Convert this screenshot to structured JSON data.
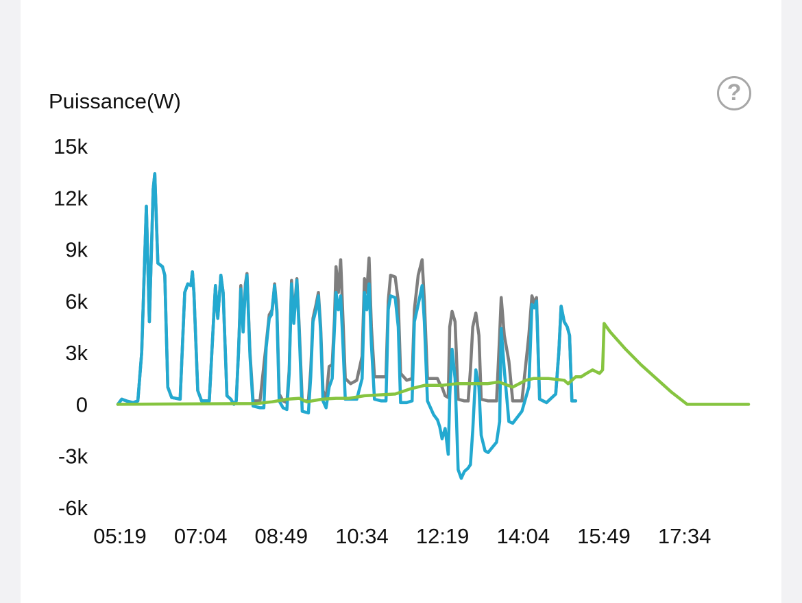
{
  "help_icon": "question-mark-circle-icon",
  "colors": {
    "blue": "#23a9d0",
    "gray": "#7e7e7e",
    "green": "#86c440",
    "text": "#111111"
  },
  "chart_data": {
    "type": "line",
    "title": "",
    "ylabel": "Puissance(W)",
    "xlabel": "",
    "ylim": [
      -6000,
      15000
    ],
    "yticks": [
      {
        "value": 15000,
        "label": "15k"
      },
      {
        "value": 12000,
        "label": "12k"
      },
      {
        "value": 9000,
        "label": "9k"
      },
      {
        "value": 6000,
        "label": "6k"
      },
      {
        "value": 3000,
        "label": "3k"
      },
      {
        "value": 0,
        "label": "0"
      },
      {
        "value": -3000,
        "label": "-3k"
      },
      {
        "value": -6000,
        "label": "-6k"
      }
    ],
    "xlim": [
      319,
      1140
    ],
    "xticks": [
      {
        "value": 319,
        "label": "05:19"
      },
      {
        "value": 424,
        "label": "07:04"
      },
      {
        "value": 529,
        "label": "08:49"
      },
      {
        "value": 634,
        "label": "10:34"
      },
      {
        "value": 739,
        "label": "12:19"
      },
      {
        "value": 844,
        "label": "14:04"
      },
      {
        "value": 949,
        "label": "15:49"
      },
      {
        "value": 1054,
        "label": "17:34"
      }
    ],
    "grid": false,
    "legend": "none",
    "series": [
      {
        "color": "#7e7e7e",
        "points": [
          [
            319,
            0
          ],
          [
            324,
            300
          ],
          [
            330,
            200
          ],
          [
            339,
            100
          ],
          [
            345,
            200
          ],
          [
            350,
            3000
          ],
          [
            356,
            11500
          ],
          [
            360,
            4800
          ],
          [
            365,
            12500
          ],
          [
            367,
            13400
          ],
          [
            371,
            8200
          ],
          [
            377,
            8000
          ],
          [
            380,
            7500
          ],
          [
            384,
            1000
          ],
          [
            389,
            400
          ],
          [
            400,
            300
          ],
          [
            406,
            6500
          ],
          [
            410,
            7000
          ],
          [
            414,
            6900
          ],
          [
            416,
            7700
          ],
          [
            418,
            6500
          ],
          [
            423,
            800
          ],
          [
            428,
            200
          ],
          [
            438,
            200
          ],
          [
            443,
            4500
          ],
          [
            446,
            6900
          ],
          [
            449,
            5000
          ],
          [
            453,
            7500
          ],
          [
            456,
            6500
          ],
          [
            461,
            500
          ],
          [
            466,
            300
          ],
          [
            470,
            0
          ],
          [
            473,
            200
          ],
          [
            476,
            3000
          ],
          [
            479,
            6900
          ],
          [
            482,
            4400
          ],
          [
            485,
            7000
          ],
          [
            487,
            7600
          ],
          [
            491,
            3000
          ],
          [
            495,
            200
          ],
          [
            504,
            200
          ],
          [
            512,
            3500
          ],
          [
            516,
            5200
          ],
          [
            520,
            5500
          ],
          [
            523,
            7000
          ],
          [
            526,
            5500
          ],
          [
            529,
            600
          ],
          [
            534,
            200
          ],
          [
            539,
            100
          ],
          [
            542,
            2000
          ],
          [
            545,
            7200
          ],
          [
            548,
            5000
          ],
          [
            552,
            7300
          ],
          [
            555,
            4500
          ],
          [
            559,
            200
          ],
          [
            567,
            200
          ],
          [
            570,
            2000
          ],
          [
            573,
            5000
          ],
          [
            577,
            5800
          ],
          [
            580,
            6500
          ],
          [
            583,
            4500
          ],
          [
            586,
            800
          ],
          [
            590,
            300
          ],
          [
            594,
            2200
          ],
          [
            598,
            2300
          ],
          [
            601,
            5000
          ],
          [
            603,
            8000
          ],
          [
            606,
            6500
          ],
          [
            609,
            8400
          ],
          [
            612,
            5000
          ],
          [
            615,
            1500
          ],
          [
            622,
            1200
          ],
          [
            630,
            1400
          ],
          [
            637,
            2800
          ],
          [
            640,
            7300
          ],
          [
            643,
            6500
          ],
          [
            646,
            8500
          ],
          [
            649,
            4500
          ],
          [
            653,
            1600
          ],
          [
            662,
            1600
          ],
          [
            668,
            1600
          ],
          [
            671,
            6000
          ],
          [
            674,
            7500
          ],
          [
            680,
            7400
          ],
          [
            684,
            6000
          ],
          [
            687,
            1800
          ],
          [
            695,
            1400
          ],
          [
            702,
            1500
          ],
          [
            705,
            5500
          ],
          [
            710,
            7500
          ],
          [
            715,
            8400
          ],
          [
            718,
            6000
          ],
          [
            722,
            1500
          ],
          [
            730,
            1500
          ],
          [
            735,
            1500
          ],
          [
            738,
            1200
          ],
          [
            741,
            1000
          ],
          [
            745,
            500
          ],
          [
            749,
            400
          ],
          [
            751,
            4500
          ],
          [
            754,
            5400
          ],
          [
            758,
            4800
          ],
          [
            762,
            300
          ],
          [
            770,
            200
          ],
          [
            775,
            200
          ],
          [
            778,
            2000
          ],
          [
            781,
            4500
          ],
          [
            785,
            5300
          ],
          [
            789,
            4000
          ],
          [
            792,
            300
          ],
          [
            801,
            200
          ],
          [
            812,
            200
          ],
          [
            816,
            4000
          ],
          [
            818,
            6200
          ],
          [
            822,
            4000
          ],
          [
            828,
            2500
          ],
          [
            833,
            200
          ],
          [
            845,
            200
          ],
          [
            854,
            4000
          ],
          [
            858,
            6300
          ],
          [
            861,
            5900
          ],
          [
            864,
            6200
          ],
          [
            868,
            300
          ],
          [
            877,
            100
          ],
          [
            889,
            600
          ],
          [
            893,
            3000
          ],
          [
            896,
            5700
          ],
          [
            900,
            4800
          ],
          [
            904,
            4500
          ],
          [
            907,
            4000
          ],
          [
            910,
            200
          ],
          [
            915,
            200
          ]
        ]
      },
      {
        "color": "#23a9d0",
        "points": [
          [
            319,
            0
          ],
          [
            324,
            300
          ],
          [
            330,
            200
          ],
          [
            339,
            100
          ],
          [
            345,
            200
          ],
          [
            350,
            3000
          ],
          [
            356,
            11500
          ],
          [
            360,
            4800
          ],
          [
            365,
            12500
          ],
          [
            367,
            13400
          ],
          [
            371,
            8200
          ],
          [
            377,
            8000
          ],
          [
            380,
            7500
          ],
          [
            384,
            1000
          ],
          [
            389,
            400
          ],
          [
            400,
            300
          ],
          [
            406,
            6500
          ],
          [
            410,
            7000
          ],
          [
            414,
            6900
          ],
          [
            416,
            7700
          ],
          [
            418,
            6500
          ],
          [
            423,
            800
          ],
          [
            428,
            200
          ],
          [
            438,
            200
          ],
          [
            443,
            4500
          ],
          [
            446,
            6900
          ],
          [
            449,
            5000
          ],
          [
            453,
            7500
          ],
          [
            456,
            6500
          ],
          [
            461,
            500
          ],
          [
            466,
            300
          ],
          [
            470,
            0
          ],
          [
            473,
            200
          ],
          [
            476,
            3000
          ],
          [
            479,
            6700
          ],
          [
            482,
            4200
          ],
          [
            485,
            6800
          ],
          [
            487,
            7500
          ],
          [
            491,
            2800
          ],
          [
            495,
            -100
          ],
          [
            504,
            -200
          ],
          [
            509,
            -200
          ],
          [
            512,
            3300
          ],
          [
            516,
            5000
          ],
          [
            519,
            5200
          ],
          [
            523,
            6900
          ],
          [
            526,
            5300
          ],
          [
            529,
            200
          ],
          [
            534,
            -200
          ],
          [
            539,
            -300
          ],
          [
            542,
            1800
          ],
          [
            545,
            7000
          ],
          [
            548,
            4700
          ],
          [
            552,
            7200
          ],
          [
            555,
            4200
          ],
          [
            559,
            -400
          ],
          [
            567,
            -500
          ],
          [
            570,
            1600
          ],
          [
            573,
            4800
          ],
          [
            577,
            5500
          ],
          [
            580,
            6300
          ],
          [
            583,
            4200
          ],
          [
            586,
            200
          ],
          [
            590,
            -200
          ],
          [
            594,
            1000
          ],
          [
            598,
            1500
          ],
          [
            601,
            4500
          ],
          [
            603,
            6500
          ],
          [
            606,
            5500
          ],
          [
            609,
            6300
          ],
          [
            612,
            3500
          ],
          [
            615,
            300
          ],
          [
            622,
            300
          ],
          [
            630,
            300
          ],
          [
            637,
            1500
          ],
          [
            640,
            6500
          ],
          [
            643,
            5500
          ],
          [
            646,
            7000
          ],
          [
            649,
            3500
          ],
          [
            653,
            300
          ],
          [
            662,
            200
          ],
          [
            668,
            200
          ],
          [
            671,
            5500
          ],
          [
            674,
            6300
          ],
          [
            680,
            6200
          ],
          [
            684,
            4500
          ],
          [
            687,
            100
          ],
          [
            695,
            100
          ],
          [
            702,
            200
          ],
          [
            705,
            4800
          ],
          [
            710,
            5800
          ],
          [
            715,
            6900
          ],
          [
            718,
            4800
          ],
          [
            722,
            200
          ],
          [
            730,
            -600
          ],
          [
            735,
            -900
          ],
          [
            738,
            -1300
          ],
          [
            741,
            -2000
          ],
          [
            745,
            -1400
          ],
          [
            749,
            -2900
          ],
          [
            751,
            500
          ],
          [
            754,
            3200
          ],
          [
            758,
            1500
          ],
          [
            762,
            -3800
          ],
          [
            766,
            -4300
          ],
          [
            770,
            -3900
          ],
          [
            775,
            -3700
          ],
          [
            778,
            -3500
          ],
          [
            781,
            -1500
          ],
          [
            785,
            2000
          ],
          [
            789,
            1000
          ],
          [
            792,
            -1800
          ],
          [
            797,
            -2700
          ],
          [
            801,
            -2800
          ],
          [
            812,
            -2200
          ],
          [
            816,
            -1000
          ],
          [
            818,
            4400
          ],
          [
            822,
            2000
          ],
          [
            828,
            -1000
          ],
          [
            833,
            -1100
          ],
          [
            845,
            -400
          ],
          [
            854,
            1000
          ],
          [
            858,
            5800
          ],
          [
            861,
            5600
          ],
          [
            864,
            6000
          ],
          [
            868,
            300
          ],
          [
            877,
            100
          ],
          [
            889,
            600
          ],
          [
            893,
            3000
          ],
          [
            896,
            5700
          ],
          [
            900,
            4800
          ],
          [
            904,
            4500
          ],
          [
            907,
            4000
          ],
          [
            910,
            200
          ],
          [
            915,
            200
          ]
        ]
      },
      {
        "color": "#86c440",
        "points": [
          [
            319,
            0
          ],
          [
            500,
            50
          ],
          [
            520,
            150
          ],
          [
            540,
            300
          ],
          [
            555,
            350
          ],
          [
            565,
            150
          ],
          [
            585,
            300
          ],
          [
            603,
            350
          ],
          [
            620,
            350
          ],
          [
            640,
            500
          ],
          [
            660,
            550
          ],
          [
            680,
            600
          ],
          [
            700,
            900
          ],
          [
            718,
            1100
          ],
          [
            740,
            1100
          ],
          [
            760,
            1200
          ],
          [
            780,
            1200
          ],
          [
            790,
            1200
          ],
          [
            800,
            1200
          ],
          [
            815,
            1300
          ],
          [
            833,
            1000
          ],
          [
            850,
            1400
          ],
          [
            860,
            1500
          ],
          [
            880,
            1500
          ],
          [
            900,
            1400
          ],
          [
            905,
            1200
          ],
          [
            915,
            1600
          ],
          [
            922,
            1600
          ],
          [
            929,
            1800
          ],
          [
            937,
            2000
          ],
          [
            946,
            1800
          ],
          [
            950,
            2000
          ],
          [
            952,
            4700
          ],
          [
            960,
            4200
          ],
          [
            980,
            3200
          ],
          [
            1000,
            2300
          ],
          [
            1020,
            1500
          ],
          [
            1040,
            700
          ],
          [
            1060,
            0
          ],
          [
            1140,
            0
          ]
        ]
      }
    ]
  }
}
